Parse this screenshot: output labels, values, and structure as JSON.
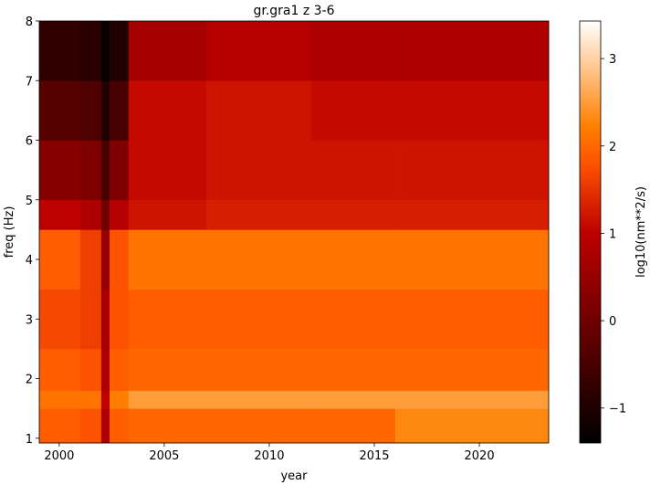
{
  "chart_data": {
    "type": "heatmap",
    "title": "gr.gra1 z 3-6",
    "x_label": "year",
    "y_label": "freq (Hz)",
    "colorbar_label": "log10(nm**2/s)",
    "colormap": "gist_heat",
    "xbins": [
      1999.05,
      2001,
      2002,
      2002.4,
      2003.3,
      2007,
      2012,
      2016,
      2023.3
    ],
    "ybins": [
      0.92,
      1.5,
      1.8,
      2.5,
      3.5,
      4.5,
      5,
      6,
      7,
      8
    ],
    "z": [
      [
        1.9,
        1.8,
        0.8,
        1.9,
        2.0,
        2.0,
        2.0,
        2.3
      ],
      [
        2.1,
        2.1,
        1.0,
        2.2,
        2.5,
        2.5,
        2.5,
        2.5
      ],
      [
        1.9,
        1.8,
        0.8,
        1.9,
        2.0,
        2.0,
        2.0,
        2.0
      ],
      [
        1.7,
        1.6,
        0.7,
        1.8,
        1.9,
        1.9,
        1.9,
        1.9
      ],
      [
        1.9,
        1.6,
        0.5,
        1.8,
        2.1,
        2.1,
        2.1,
        2.1
      ],
      [
        1.0,
        0.8,
        0,
        0.9,
        1.2,
        1.3,
        1.3,
        1.3
      ],
      [
        0.3,
        0.2,
        -0.5,
        0.2,
        1.1,
        1.2,
        1.2,
        1.2
      ],
      [
        -0.3,
        -0.4,
        -1.0,
        -0.5,
        1.1,
        1.2,
        1.1,
        1.1
      ],
      [
        -0.8,
        -0.9,
        -1.3,
        -1.0,
        0.7,
        0.9,
        0.8,
        0.8
      ]
    ],
    "xlim": [
      1999.05,
      2023.3
    ],
    "ylim": [
      0.92,
      8
    ],
    "xticks": [
      2000,
      2005,
      2010,
      2015,
      2020
    ],
    "yticks": [
      1,
      2,
      3,
      4,
      5,
      6,
      7,
      8
    ],
    "clim": [
      -1.4,
      3.43
    ],
    "cticks": [
      {
        "value": -1,
        "label": "−1"
      },
      0,
      1,
      2,
      3
    ]
  }
}
